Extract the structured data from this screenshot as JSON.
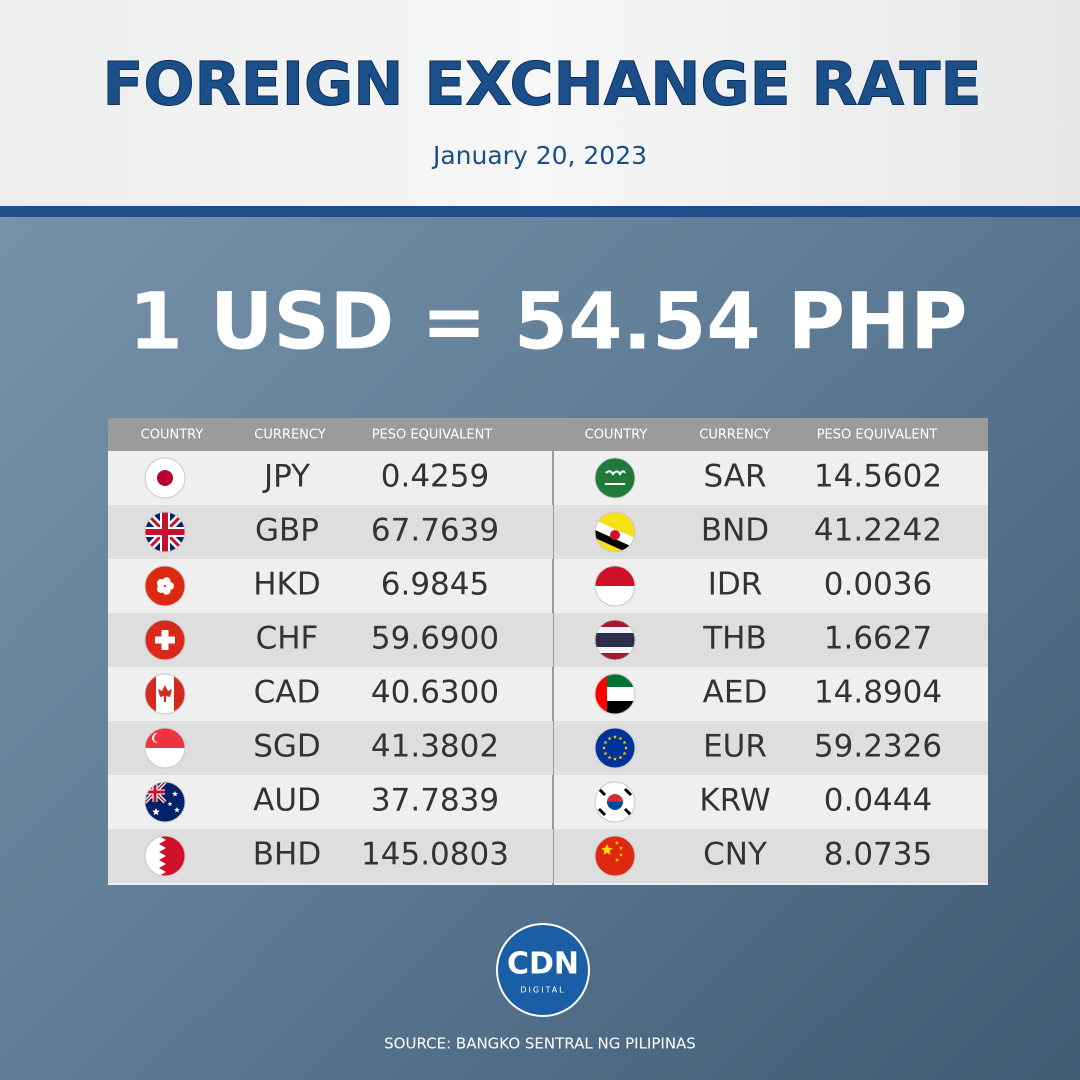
{
  "header": {
    "title": "FOREIGN EXCHANGE RATE",
    "date": "January 20, 2023"
  },
  "headline": "1 USD = 54.54 PHP",
  "table": {
    "left": {
      "headers": [
        "COUNTRY",
        "CURRENCY",
        "PESO EQUIVALENT"
      ],
      "rows": [
        [
          "JPY",
          "0.4259"
        ],
        [
          "GBP",
          "67.7639"
        ],
        [
          "HKD",
          "6.9845"
        ],
        [
          "CHF",
          "59.6900"
        ],
        [
          "CAD",
          "40.6300"
        ],
        [
          "SGD",
          "41.3802"
        ],
        [
          "AUD",
          "37.7839"
        ],
        [
          "BHD",
          "145.0803"
        ]
      ]
    },
    "right": {
      "headers": [
        "COUNTRY",
        "CURRENCY",
        "PESO EQUIVALENT"
      ],
      "rows": [
        [
          "SAR",
          "14.5602"
        ],
        [
          "BND",
          "41.2242"
        ],
        [
          "IDR",
          "0.0036"
        ],
        [
          "THB",
          "1.6627"
        ],
        [
          "AED",
          "14.8904"
        ],
        [
          "EUR",
          "59.2326"
        ],
        [
          "KRW",
          "0.0444"
        ],
        [
          "CNY",
          "8.0735"
        ]
      ]
    }
  },
  "logo": {
    "name": "CDN",
    "tagline": "DIGITAL"
  },
  "source": "SOURCE: BANGKO SENTRAL NG PILIPINAS"
}
